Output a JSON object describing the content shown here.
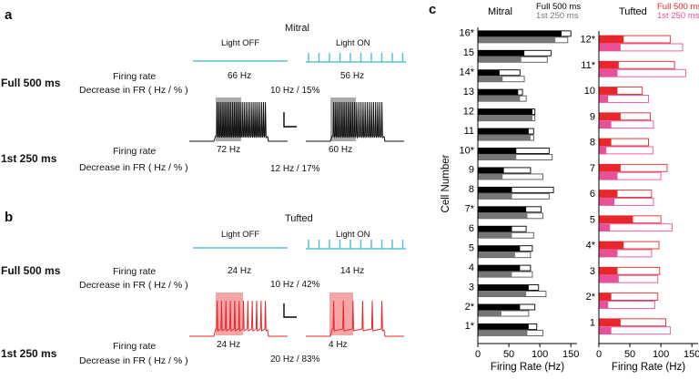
{
  "panel_a": {
    "label": "a",
    "title": "Mitral",
    "light_off": "Light OFF",
    "light_on": "Light ON",
    "full_label": "Full 500 ms",
    "first_label": "1st 250 ms",
    "firing_rate": "Firing rate",
    "decrease": "Decrease in FR ( Hz / % )",
    "full_off_hz": "66 Hz",
    "full_on_hz": "56 Hz",
    "full_decrease": "10 Hz / 15%",
    "first_off_hz": "72 Hz",
    "first_on_hz": "60 Hz",
    "first_decrease": "12 Hz / 17%"
  },
  "panel_b": {
    "label": "b",
    "title": "Tufted",
    "light_off": "Light OFF",
    "light_on": "Light ON",
    "full_label": "Full 500 ms",
    "first_label": "1st 250 ms",
    "firing_rate": "Firing rate",
    "decrease": "Decrease in FR ( Hz / % )",
    "full_off_hz": "24 Hz",
    "full_on_hz": "14 Hz",
    "full_decrease": "10 Hz / 42%",
    "first_off_hz": "24 Hz",
    "first_on_hz": "4 Hz",
    "first_decrease": "20 Hz / 83%"
  },
  "panel_c": {
    "label": "c"
  },
  "colors": {
    "light_blue": "#5bc0d6",
    "mitral_full": "#000000",
    "mitral_first": "#777777",
    "tufted_full": "#e8262b",
    "tufted_first": "#e8509a",
    "shade_gray": "#aaaaaa",
    "shade_red": "#f4a6a6"
  },
  "chart_data": [
    {
      "type": "bar",
      "title": "Mitral",
      "legend": [
        "Full 500 ms",
        "1st 250 ms"
      ],
      "legend_position": "top-right",
      "xlabel": "Firing Rate (Hz)",
      "ylabel": "Cell Number",
      "xlim": [
        0,
        160
      ],
      "xticks": [
        "0",
        "50",
        "100",
        "150"
      ],
      "categories": [
        "16*",
        "15",
        "14*",
        "13",
        "12",
        "11",
        "10*",
        "9",
        "8",
        "7*",
        "6",
        "5",
        "4",
        "3",
        "2*",
        "1*"
      ],
      "series": [
        {
          "name": "Full 500 ms",
          "light_off": [
            150,
            118,
            68,
            72,
            92,
            90,
            115,
            85,
            122,
            102,
            78,
            88,
            85,
            98,
            92,
            95
          ],
          "light_on": [
            135,
            75,
            35,
            65,
            88,
            82,
            62,
            42,
            55,
            78,
            55,
            68,
            68,
            82,
            68,
            82
          ]
        },
        {
          "name": "1st 250 ms",
          "light_off": [
            145,
            112,
            75,
            78,
            92,
            90,
            120,
            105,
            115,
            105,
            90,
            85,
            88,
            110,
            82,
            105
          ],
          "light_on": [
            125,
            70,
            40,
            68,
            88,
            85,
            62,
            40,
            55,
            80,
            55,
            60,
            55,
            78,
            38,
            80
          ]
        }
      ]
    },
    {
      "type": "bar",
      "title": "Tufted",
      "legend": [
        "Full 500 ms",
        "1st 250 ms"
      ],
      "legend_position": "top-right",
      "xlabel": "Firing Rate (Hz)",
      "ylabel": "",
      "xlim": [
        0,
        160
      ],
      "xticks": [
        "0",
        "50",
        "100",
        "150"
      ],
      "categories": [
        "12*",
        "11*",
        "10",
        "9",
        "8",
        "7",
        "6",
        "5",
        "4*",
        "3",
        "2*",
        "1"
      ],
      "series": [
        {
          "name": "Full 500 ms",
          "light_off": [
            115,
            122,
            70,
            83,
            80,
            110,
            85,
            100,
            97,
            98,
            95,
            108
          ],
          "light_on": [
            40,
            32,
            30,
            35,
            20,
            35,
            30,
            55,
            40,
            30,
            20,
            35
          ]
        },
        {
          "name": "1st 250 ms",
          "light_off": [
            135,
            140,
            80,
            88,
            87,
            100,
            88,
            118,
            85,
            95,
            90,
            115
          ],
          "light_on": [
            35,
            30,
            15,
            20,
            12,
            30,
            25,
            18,
            30,
            32,
            15,
            20
          ]
        }
      ]
    }
  ]
}
